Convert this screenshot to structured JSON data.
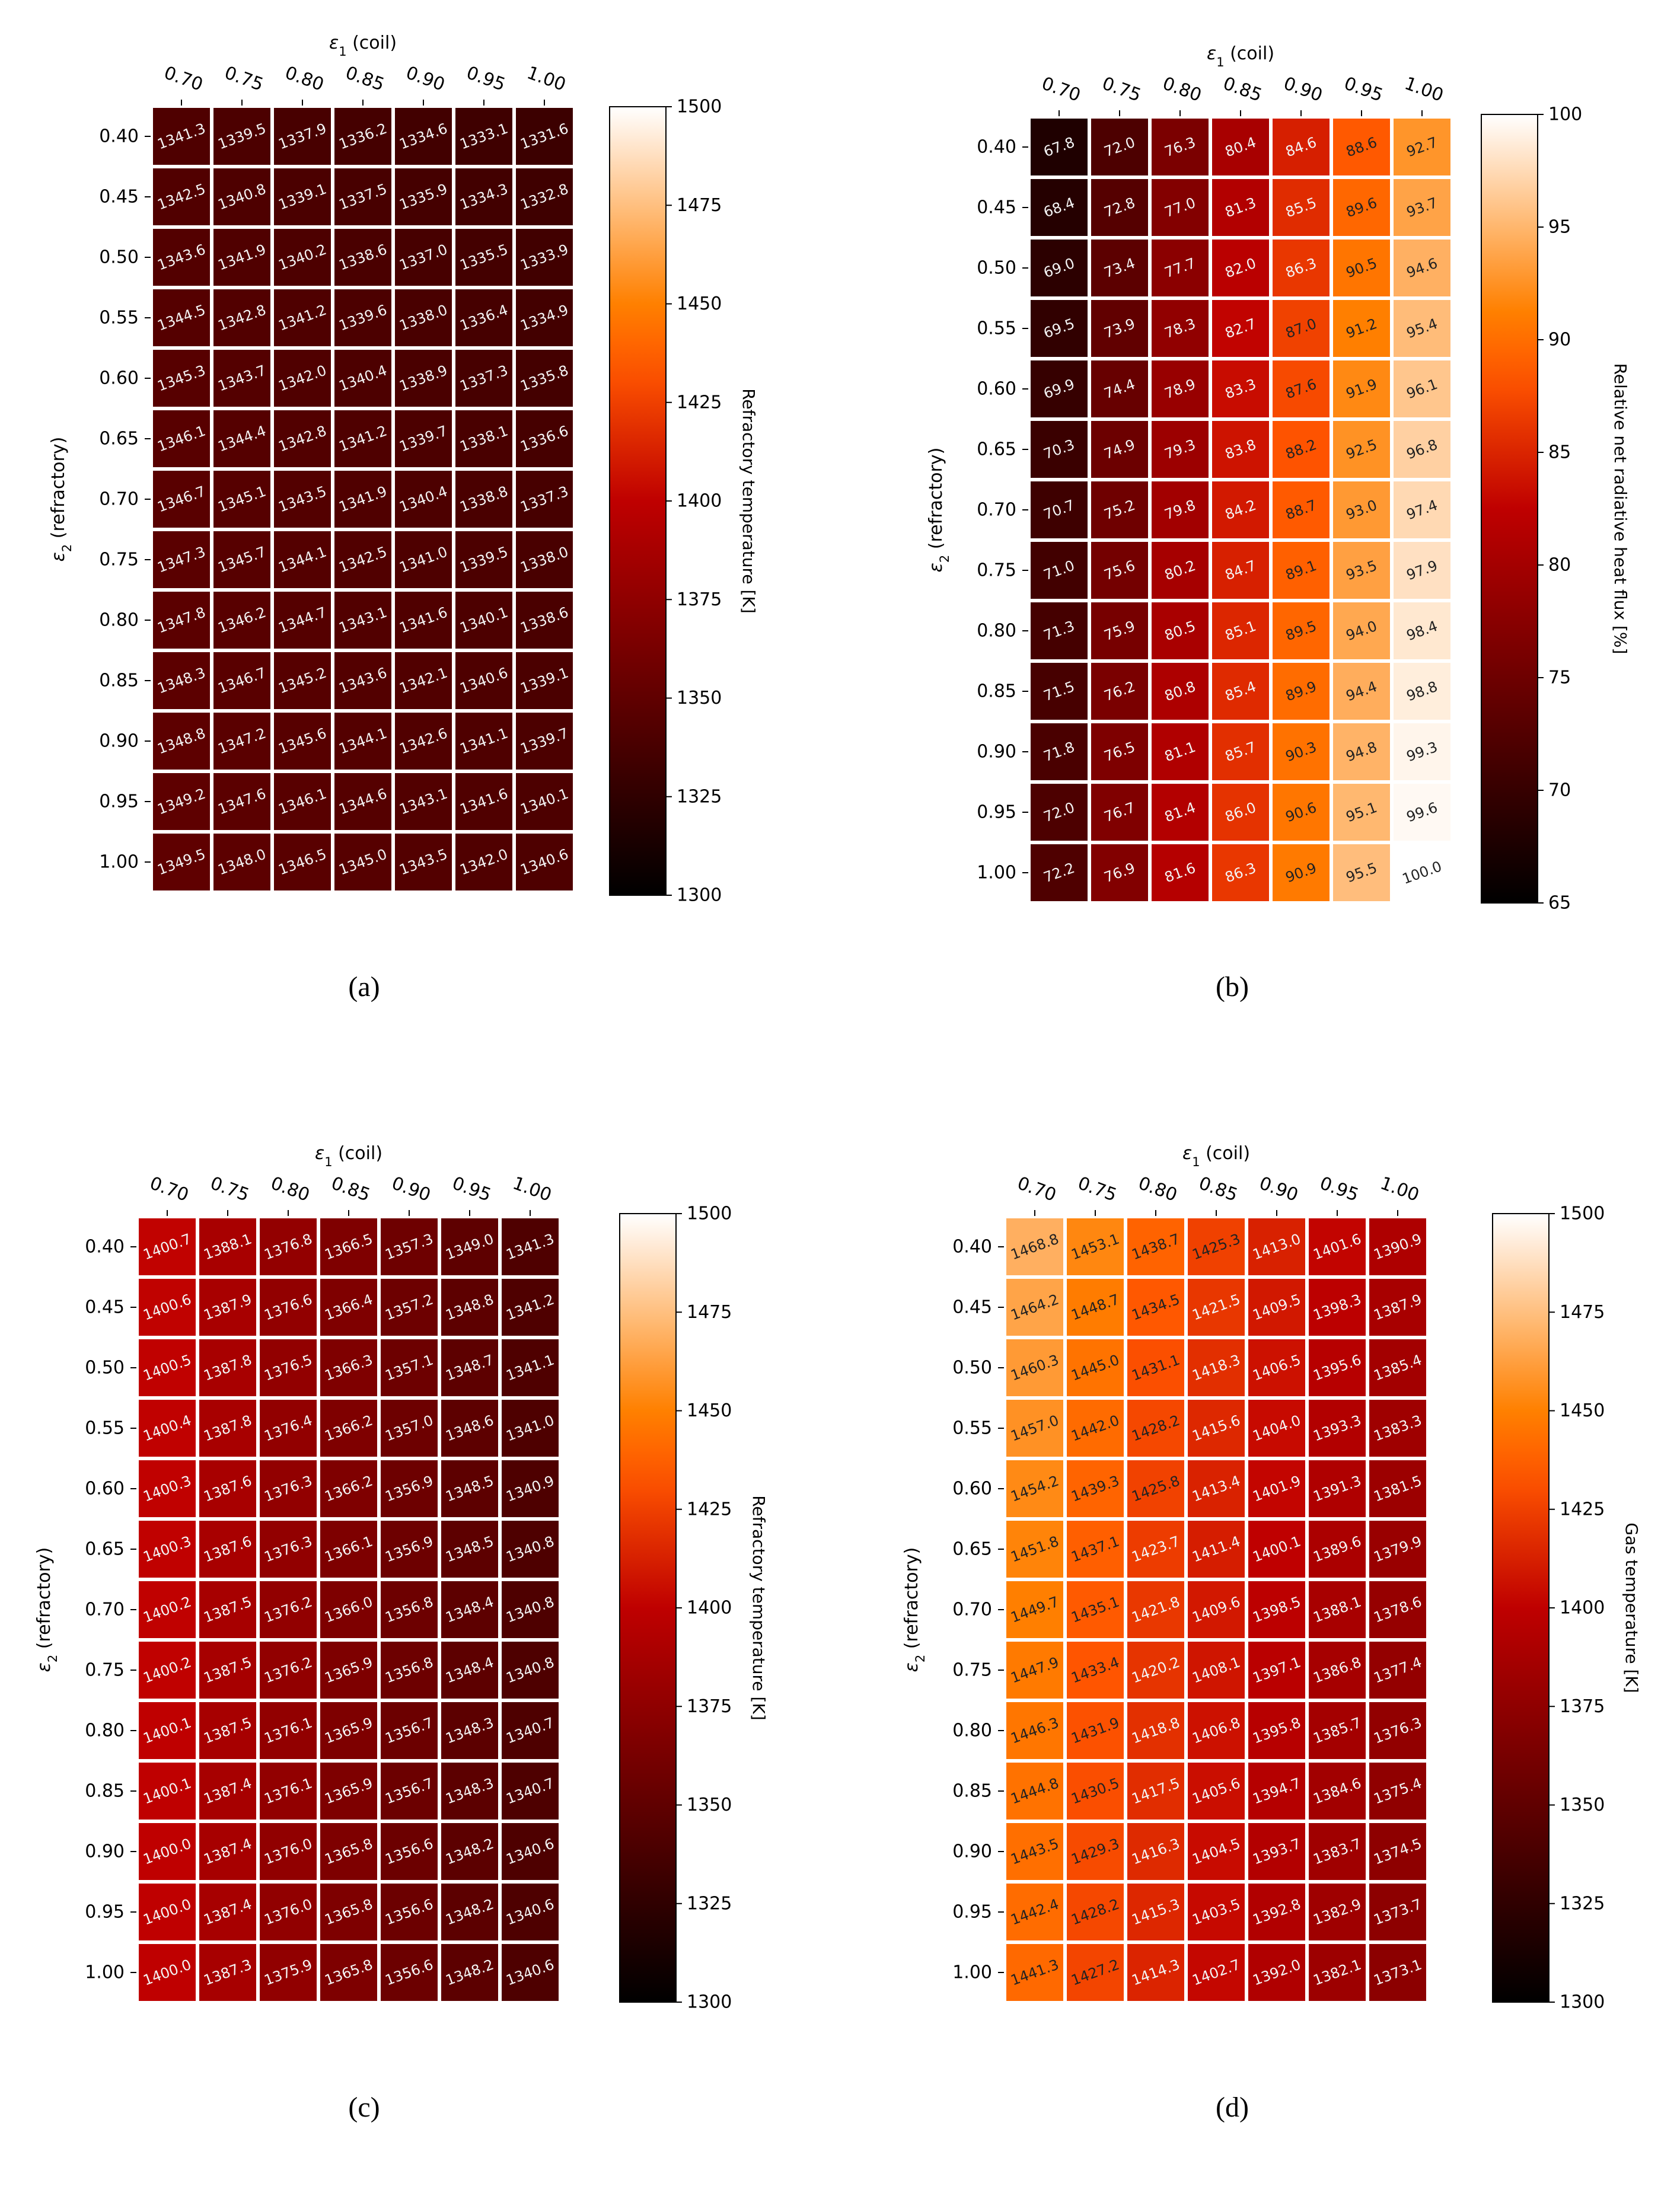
{
  "figure": {
    "colors": {
      "background": "#ffffff",
      "cell_border": "#ffffff",
      "text": "#000000",
      "colormap": "gist_heat"
    },
    "panels": [
      "a",
      "b",
      "c",
      "d"
    ]
  },
  "chart_data": [
    {
      "id": "a",
      "type": "heatmap",
      "caption": "(a)",
      "title": "",
      "xlabel": "ε1 (coil)",
      "xlabel_main": "ε",
      "xlabel_sub": "1",
      "xlabel_rest": " (coil)",
      "ylabel": "ε2 (refractory)",
      "ylabel_main": "ε",
      "ylabel_sub": "2",
      "ylabel_rest": " (refractory)",
      "x_categories": [
        "0.70",
        "0.75",
        "0.80",
        "0.85",
        "0.90",
        "0.95",
        "1.00"
      ],
      "y_categories": [
        "0.40",
        "0.45",
        "0.50",
        "0.55",
        "0.60",
        "0.65",
        "0.70",
        "0.75",
        "0.80",
        "0.85",
        "0.90",
        "0.95",
        "1.00"
      ],
      "values": [
        [
          "1341.3",
          "1339.5",
          "1337.9",
          "1336.2",
          "1334.6",
          "1333.1",
          "1331.6"
        ],
        [
          "1342.5",
          "1340.8",
          "1339.1",
          "1337.5",
          "1335.9",
          "1334.3",
          "1332.8"
        ],
        [
          "1343.6",
          "1341.9",
          "1340.2",
          "1338.6",
          "1337.0",
          "1335.5",
          "1333.9"
        ],
        [
          "1344.5",
          "1342.8",
          "1341.2",
          "1339.6",
          "1338.0",
          "1336.4",
          "1334.9"
        ],
        [
          "1345.3",
          "1343.7",
          "1342.0",
          "1340.4",
          "1338.9",
          "1337.3",
          "1335.8"
        ],
        [
          "1346.1",
          "1344.4",
          "1342.8",
          "1341.2",
          "1339.7",
          "1338.1",
          "1336.6"
        ],
        [
          "1346.7",
          "1345.1",
          "1343.5",
          "1341.9",
          "1340.4",
          "1338.8",
          "1337.3"
        ],
        [
          "1347.3",
          "1345.7",
          "1344.1",
          "1342.5",
          "1341.0",
          "1339.5",
          "1338.0"
        ],
        [
          "1347.8",
          "1346.2",
          "1344.7",
          "1343.1",
          "1341.6",
          "1340.1",
          "1338.6"
        ],
        [
          "1348.3",
          "1346.7",
          "1345.2",
          "1343.6",
          "1342.1",
          "1340.6",
          "1339.1"
        ],
        [
          "1348.8",
          "1347.2",
          "1345.6",
          "1344.1",
          "1342.6",
          "1341.1",
          "1339.7"
        ],
        [
          "1349.2",
          "1347.6",
          "1346.1",
          "1344.6",
          "1343.1",
          "1341.6",
          "1340.1"
        ],
        [
          "1349.5",
          "1348.0",
          "1346.5",
          "1345.0",
          "1343.5",
          "1342.0",
          "1340.6"
        ]
      ],
      "colorbar": {
        "label": "Refractory temperature [K]",
        "range": [
          1300,
          1500
        ],
        "ticks": [
          "1300",
          "1325",
          "1350",
          "1375",
          "1400",
          "1425",
          "1450",
          "1475",
          "1500"
        ]
      },
      "colorbar_ticks_text": [
        "1300",
        "1325",
        "1350",
        "1375",
        "1400",
        "1425",
        "1450",
        "1475",
        "1500"
      ]
    },
    {
      "id": "b",
      "type": "heatmap",
      "caption": "(b)",
      "title": "",
      "xlabel": "ε1 (coil)",
      "xlabel_main": "ε",
      "xlabel_sub": "1",
      "xlabel_rest": " (coil)",
      "ylabel": "ε2 (refractory)",
      "ylabel_main": "ε",
      "ylabel_sub": "2",
      "ylabel_rest": " (refractory)",
      "x_categories": [
        "0.70",
        "0.75",
        "0.80",
        "0.85",
        "0.90",
        "0.95",
        "1.00"
      ],
      "y_categories": [
        "0.40",
        "0.45",
        "0.50",
        "0.55",
        "0.60",
        "0.65",
        "0.70",
        "0.75",
        "0.80",
        "0.85",
        "0.90",
        "0.95",
        "1.00"
      ],
      "values": [
        [
          "67.8",
          "72.0",
          "76.3",
          "80.4",
          "84.6",
          "88.6",
          "92.7"
        ],
        [
          "68.4",
          "72.8",
          "77.0",
          "81.3",
          "85.5",
          "89.6",
          "93.7"
        ],
        [
          "69.0",
          "73.4",
          "77.7",
          "82.0",
          "86.3",
          "90.5",
          "94.6"
        ],
        [
          "69.5",
          "73.9",
          "78.3",
          "82.7",
          "87.0",
          "91.2",
          "95.4"
        ],
        [
          "69.9",
          "74.4",
          "78.9",
          "83.3",
          "87.6",
          "91.9",
          "96.1"
        ],
        [
          "70.3",
          "74.9",
          "79.3",
          "83.8",
          "88.2",
          "92.5",
          "96.8"
        ],
        [
          "70.7",
          "75.2",
          "79.8",
          "84.2",
          "88.7",
          "93.0",
          "97.4"
        ],
        [
          "71.0",
          "75.6",
          "80.2",
          "84.7",
          "89.1",
          "93.5",
          "97.9"
        ],
        [
          "71.3",
          "75.9",
          "80.5",
          "85.1",
          "89.5",
          "94.0",
          "98.4"
        ],
        [
          "71.5",
          "76.2",
          "80.8",
          "85.4",
          "89.9",
          "94.4",
          "98.8"
        ],
        [
          "71.8",
          "76.5",
          "81.1",
          "85.7",
          "90.3",
          "94.8",
          "99.3"
        ],
        [
          "72.0",
          "76.7",
          "81.4",
          "86.0",
          "90.6",
          "95.1",
          "99.6"
        ],
        [
          "72.2",
          "76.9",
          "81.6",
          "86.3",
          "90.9",
          "95.5",
          "100.0"
        ]
      ],
      "colorbar": {
        "label": "Relative net radiative heat flux [%]",
        "range": [
          65,
          100
        ],
        "ticks": [
          "65",
          "70",
          "75",
          "80",
          "85",
          "90",
          "95",
          "100"
        ]
      },
      "colorbar_ticks_text": [
        "65",
        "70",
        "75",
        "80",
        "85",
        "90",
        "95",
        "100"
      ]
    },
    {
      "id": "c",
      "type": "heatmap",
      "caption": "(c)",
      "title": "",
      "xlabel": "ε1 (coil)",
      "xlabel_main": "ε",
      "xlabel_sub": "1",
      "xlabel_rest": " (coil)",
      "ylabel": "ε2 (refractory)",
      "ylabel_main": "ε",
      "ylabel_sub": "2",
      "ylabel_rest": " (refractory)",
      "x_categories": [
        "0.70",
        "0.75",
        "0.80",
        "0.85",
        "0.90",
        "0.95",
        "1.00"
      ],
      "y_categories": [
        "0.40",
        "0.45",
        "0.50",
        "0.55",
        "0.60",
        "0.65",
        "0.70",
        "0.75",
        "0.80",
        "0.85",
        "0.90",
        "0.95",
        "1.00"
      ],
      "values": [
        [
          "1400.7",
          "1388.1",
          "1376.8",
          "1366.5",
          "1357.3",
          "1349.0",
          "1341.3"
        ],
        [
          "1400.6",
          "1387.9",
          "1376.6",
          "1366.4",
          "1357.2",
          "1348.8",
          "1341.2"
        ],
        [
          "1400.5",
          "1387.8",
          "1376.5",
          "1366.3",
          "1357.1",
          "1348.7",
          "1341.1"
        ],
        [
          "1400.4",
          "1387.8",
          "1376.4",
          "1366.2",
          "1357.0",
          "1348.6",
          "1341.0"
        ],
        [
          "1400.3",
          "1387.6",
          "1376.3",
          "1366.2",
          "1356.9",
          "1348.5",
          "1340.9"
        ],
        [
          "1400.3",
          "1387.6",
          "1376.3",
          "1366.1",
          "1356.9",
          "1348.5",
          "1340.8"
        ],
        [
          "1400.2",
          "1387.5",
          "1376.2",
          "1366.0",
          "1356.8",
          "1348.4",
          "1340.8"
        ],
        [
          "1400.2",
          "1387.5",
          "1376.2",
          "1365.9",
          "1356.8",
          "1348.4",
          "1340.8"
        ],
        [
          "1400.1",
          "1387.5",
          "1376.1",
          "1365.9",
          "1356.7",
          "1348.3",
          "1340.7"
        ],
        [
          "1400.1",
          "1387.4",
          "1376.1",
          "1365.9",
          "1356.7",
          "1348.3",
          "1340.7"
        ],
        [
          "1400.0",
          "1387.4",
          "1376.0",
          "1365.8",
          "1356.6",
          "1348.2",
          "1340.6"
        ],
        [
          "1400.0",
          "1387.4",
          "1376.0",
          "1365.8",
          "1356.6",
          "1348.2",
          "1340.6"
        ],
        [
          "1400.0",
          "1387.3",
          "1375.9",
          "1365.8",
          "1356.6",
          "1348.2",
          "1340.6"
        ]
      ],
      "colorbar": {
        "label": "Refractory temperature [K]",
        "range": [
          1300,
          1500
        ],
        "ticks": [
          "1300",
          "1325",
          "1350",
          "1375",
          "1400",
          "1425",
          "1450",
          "1475",
          "1500"
        ]
      },
      "colorbar_ticks_text": [
        "1300",
        "1325",
        "1350",
        "1375",
        "1400",
        "1425",
        "1450",
        "1475",
        "1500"
      ]
    },
    {
      "id": "d",
      "type": "heatmap",
      "caption": "(d)",
      "title": "",
      "xlabel": "ε1 (coil)",
      "xlabel_main": "ε",
      "xlabel_sub": "1",
      "xlabel_rest": " (coil)",
      "ylabel": "ε2 (refractory)",
      "ylabel_main": "ε",
      "ylabel_sub": "2",
      "ylabel_rest": " (refractory)",
      "x_categories": [
        "0.70",
        "0.75",
        "0.80",
        "0.85",
        "0.90",
        "0.95",
        "1.00"
      ],
      "y_categories": [
        "0.40",
        "0.45",
        "0.50",
        "0.55",
        "0.60",
        "0.65",
        "0.70",
        "0.75",
        "0.80",
        "0.85",
        "0.90",
        "0.95",
        "1.00"
      ],
      "values": [
        [
          "1468.8",
          "1453.1",
          "1438.7",
          "1425.3",
          "1413.0",
          "1401.6",
          "1390.9"
        ],
        [
          "1464.2",
          "1448.7",
          "1434.5",
          "1421.5",
          "1409.5",
          "1398.3",
          "1387.9"
        ],
        [
          "1460.3",
          "1445.0",
          "1431.1",
          "1418.3",
          "1406.5",
          "1395.6",
          "1385.4"
        ],
        [
          "1457.0",
          "1442.0",
          "1428.2",
          "1415.6",
          "1404.0",
          "1393.3",
          "1383.3"
        ],
        [
          "1454.2",
          "1439.3",
          "1425.8",
          "1413.4",
          "1401.9",
          "1391.3",
          "1381.5"
        ],
        [
          "1451.8",
          "1437.1",
          "1423.7",
          "1411.4",
          "1400.1",
          "1389.6",
          "1379.9"
        ],
        [
          "1449.7",
          "1435.1",
          "1421.8",
          "1409.6",
          "1398.5",
          "1388.1",
          "1378.6"
        ],
        [
          "1447.9",
          "1433.4",
          "1420.2",
          "1408.1",
          "1397.1",
          "1386.8",
          "1377.4"
        ],
        [
          "1446.3",
          "1431.9",
          "1418.8",
          "1406.8",
          "1395.8",
          "1385.7",
          "1376.3"
        ],
        [
          "1444.8",
          "1430.5",
          "1417.5",
          "1405.6",
          "1394.7",
          "1384.6",
          "1375.4"
        ],
        [
          "1443.5",
          "1429.3",
          "1416.3",
          "1404.5",
          "1393.7",
          "1383.7",
          "1374.5"
        ],
        [
          "1442.4",
          "1428.2",
          "1415.3",
          "1403.5",
          "1392.8",
          "1382.9",
          "1373.7"
        ],
        [
          "1441.3",
          "1427.2",
          "1414.3",
          "1402.7",
          "1392.0",
          "1382.1",
          "1373.1"
        ]
      ],
      "colorbar": {
        "label": "Gas temperature [K]",
        "range": [
          1300,
          1500
        ],
        "ticks": [
          "1300",
          "1325",
          "1350",
          "1375",
          "1400",
          "1425",
          "1450",
          "1475",
          "1500"
        ]
      },
      "colorbar_ticks_text": [
        "1300",
        "1325",
        "1350",
        "1375",
        "1400",
        "1425",
        "1450",
        "1475",
        "1500"
      ]
    }
  ]
}
